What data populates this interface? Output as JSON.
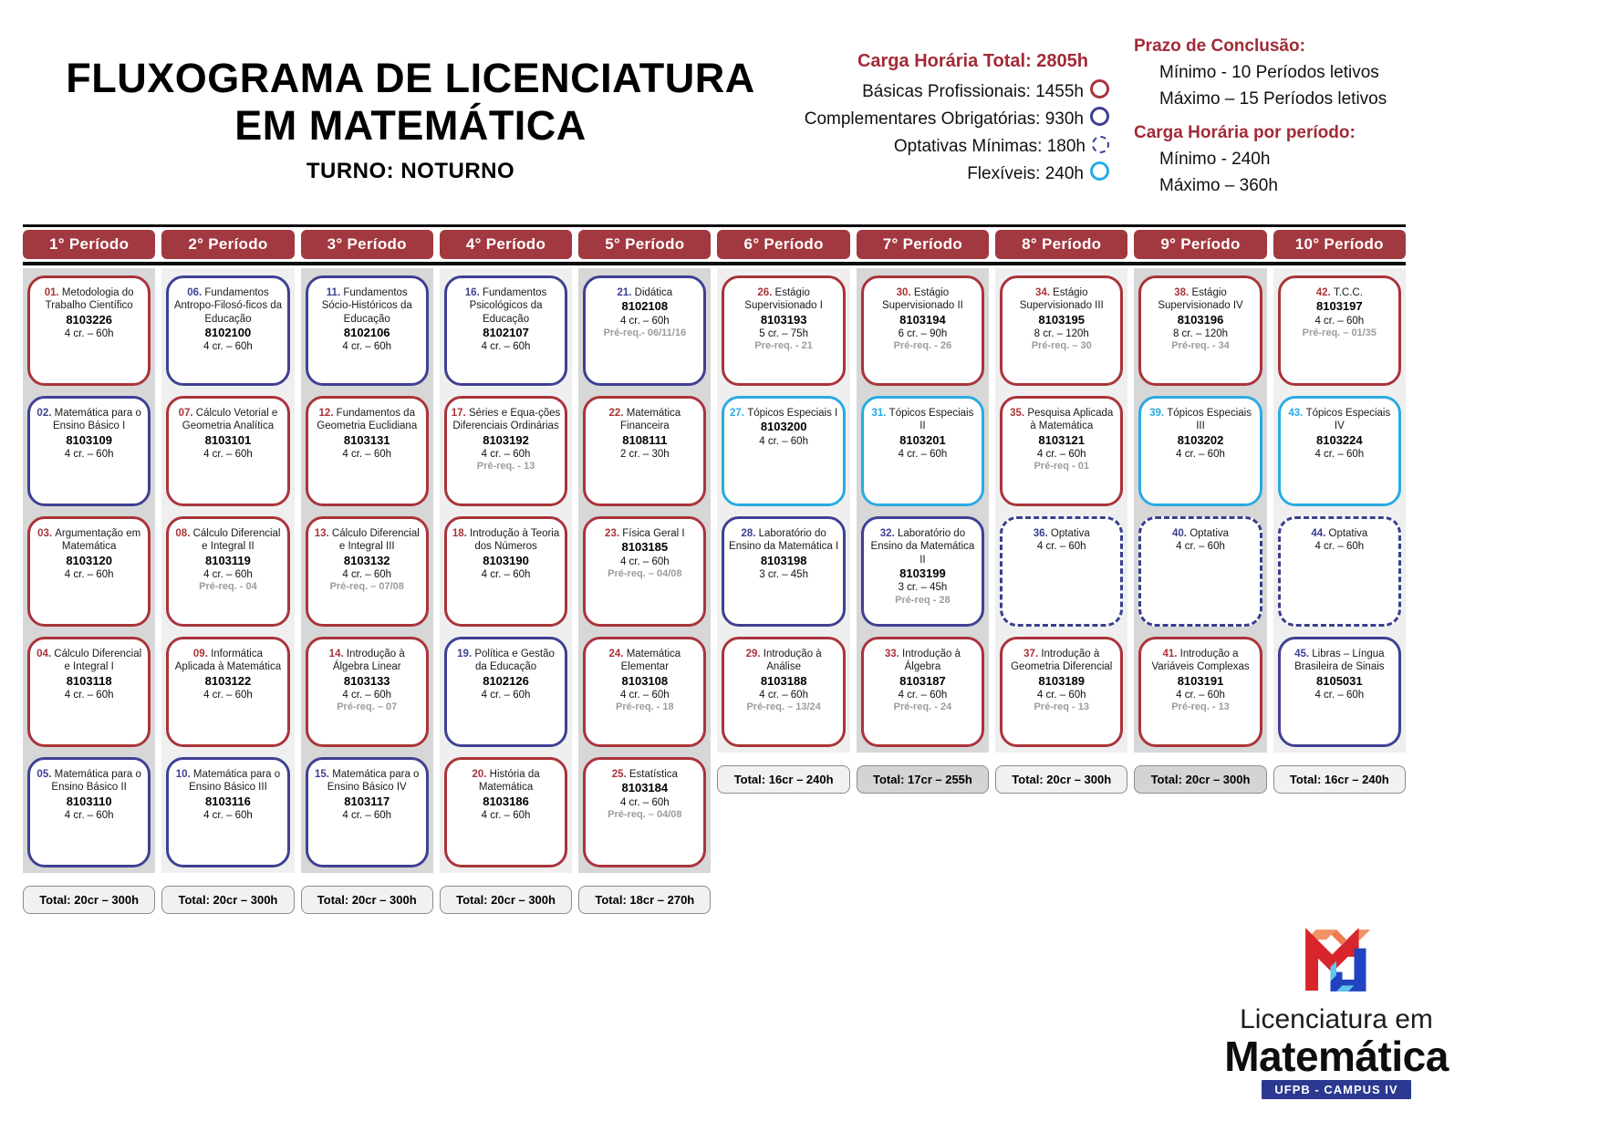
{
  "header": {
    "title_line1": "FLUXOGRAMA DE LICENCIATURA",
    "title_line2": "EM MATEMÁTICA",
    "subtitle": "TURNO: NOTURNO"
  },
  "legend": {
    "total_label": "Carga Horária Total: 2805h",
    "items": [
      {
        "label": "Básicas Profissionais: 1455h",
        "type": "basicas"
      },
      {
        "label": "Complementares Obrigatórias: 930h",
        "type": "complementares"
      },
      {
        "label": "Optativas Mínimas: 180h",
        "type": "optativas"
      },
      {
        "label": "Flexíveis: 240h",
        "type": "flexiveis"
      }
    ]
  },
  "deadlines": {
    "title": "Prazo de Conclusão:",
    "min": "Mínimo - 10 Períodos letivos",
    "max": "Máximo – 15 Períodos letivos"
  },
  "workload": {
    "title": "Carga Horária por período:",
    "min": "Mínimo - 240h",
    "max": "Máximo – 360h"
  },
  "colors": {
    "basicas": "#A93439",
    "complementares": "#3F4093",
    "optativas": "#383F8E",
    "flexiveis": "#29ABE2",
    "header_red": "#A23840",
    "accent_text_red": "#A12B36"
  },
  "periods": [
    {
      "title": "1° Período",
      "total": "Total: 20cr – 300h",
      "courses": [
        {
          "num": "01.",
          "name": "Metodologia do Trabalho Científico",
          "code": "8103226",
          "credits": "4 cr. – 60h",
          "type": "basicas"
        },
        {
          "num": "02.",
          "name": "Matemática para o Ensino Básico I",
          "code": "8103109",
          "credits": "4 cr. – 60h",
          "type": "complementares"
        },
        {
          "num": "03.",
          "name": "Argumentação em Matemática",
          "code": "8103120",
          "credits": "4 cr. – 60h",
          "type": "basicas"
        },
        {
          "num": "04.",
          "name": "Cálculo Diferencial e Integral I",
          "code": "8103118",
          "credits": "4 cr. – 60h",
          "type": "basicas"
        },
        {
          "num": "05.",
          "name": "Matemática para o Ensino Básico II",
          "code": "8103110",
          "credits": "4 cr. – 60h",
          "type": "complementares"
        }
      ]
    },
    {
      "title": "2° Período",
      "total": "Total: 20cr – 300h",
      "courses": [
        {
          "num": "06.",
          "name": "Fundamentos Antropo-Filosó-ficos da Educação",
          "code": "8102100",
          "credits": "4 cr. – 60h",
          "type": "complementares"
        },
        {
          "num": "07.",
          "name": "Cálculo Vetorial e Geometria Analítica",
          "code": "8103101",
          "credits": "4 cr. – 60h",
          "type": "basicas"
        },
        {
          "num": "08.",
          "name": "Cálculo Diferencial e Integral II",
          "code": "8103119",
          "credits": "4 cr. – 60h",
          "prereq": "Pré-req. - 04",
          "type": "basicas"
        },
        {
          "num": "09.",
          "name": "Informática Aplicada à Matemática",
          "code": "8103122",
          "credits": "4 cr. – 60h",
          "type": "basicas"
        },
        {
          "num": "10.",
          "name": "Matemática para o Ensino Básico III",
          "code": "8103116",
          "credits": "4 cr. – 60h",
          "type": "complementares"
        }
      ]
    },
    {
      "title": "3° Período",
      "total": "Total: 20cr – 300h",
      "courses": [
        {
          "num": "11.",
          "name": "Fundamentos Sócio-Históricos da Educação",
          "code": "8102106",
          "credits": "4 cr. – 60h",
          "type": "complementares"
        },
        {
          "num": "12.",
          "name": "Fundamentos da Geometria Euclidiana",
          "code": "8103131",
          "credits": "4 cr. – 60h",
          "type": "basicas"
        },
        {
          "num": "13.",
          "name": "Cálculo Diferencial e Integral III",
          "code": "8103132",
          "credits": "4 cr. – 60h",
          "prereq": "Pré-req. – 07/08",
          "type": "basicas"
        },
        {
          "num": "14.",
          "name": "Introdução à Álgebra Linear",
          "code": "8103133",
          "credits": "4 cr. – 60h",
          "prereq": "Pré-req. – 07",
          "type": "basicas"
        },
        {
          "num": "15.",
          "name": "Matemática para o Ensino Básico IV",
          "code": "8103117",
          "credits": "4 cr. – 60h",
          "type": "complementares"
        }
      ]
    },
    {
      "title": "4° Período",
      "total": "Total: 20cr – 300h",
      "courses": [
        {
          "num": "16.",
          "name": "Fundamentos Psicológicos da Educação",
          "code": "8102107",
          "credits": "4 cr. – 60h",
          "type": "complementares"
        },
        {
          "num": "17.",
          "name": "Séries e Equa-ções Diferenciais Ordinárias",
          "code": "8103192",
          "credits": "4 cr. – 60h",
          "prereq": "Pré-req. - 13",
          "type": "basicas"
        },
        {
          "num": "18.",
          "name": "Introdução à Teoria dos Números",
          "code": "8103190",
          "credits": "4 cr. – 60h",
          "type": "basicas"
        },
        {
          "num": "19.",
          "name": "Política e Gestão da Educação",
          "code": "8102126",
          "credits": "4 cr. – 60h",
          "type": "complementares"
        },
        {
          "num": "20.",
          "name": "História da Matemática",
          "code": "8103186",
          "credits": "4 cr. – 60h",
          "type": "basicas"
        }
      ]
    },
    {
      "title": "5° Período",
      "total": "Total: 18cr – 270h",
      "courses": [
        {
          "num": "21.",
          "name": "Didática",
          "code": "8102108",
          "credits": "4 cr. – 60h",
          "prereq": "Pré-req.- 06/11/16",
          "type": "complementares"
        },
        {
          "num": "22.",
          "name": "Matemática Financeira",
          "code": "8108111",
          "credits": "2 cr. – 30h",
          "type": "basicas"
        },
        {
          "num": "23.",
          "name": "Física Geral I",
          "code": "8103185",
          "credits": "4 cr. – 60h",
          "prereq": "Pré-req. – 04/08",
          "type": "basicas"
        },
        {
          "num": "24.",
          "name": "Matemática Elementar",
          "code": "8103108",
          "credits": "4 cr. – 60h",
          "prereq": "Pré-req. - 18",
          "type": "basicas"
        },
        {
          "num": "25.",
          "name": "Estatística",
          "code": "8103184",
          "credits": "4 cr. – 60h",
          "prereq": "Pré-req. – 04/08",
          "type": "basicas"
        }
      ]
    },
    {
      "title": "6° Período",
      "total": "Total: 16cr – 240h",
      "courses": [
        {
          "num": "26.",
          "name": "Estágio Supervisionado I",
          "code": "8103193",
          "credits": "5 cr. – 75h",
          "prereq": "Pre-req. - 21",
          "type": "basicas"
        },
        {
          "num": "27.",
          "name": "Tópicos Especiais I",
          "code": "8103200",
          "credits": "4 cr. – 60h",
          "type": "flexiveis"
        },
        {
          "num": "28.",
          "name": "Laboratório do Ensino da Matemática I",
          "code": "8103198",
          "credits": "3 cr. – 45h",
          "type": "complementares"
        },
        {
          "num": "29.",
          "name": "Introdução à Análise",
          "code": "8103188",
          "credits": "4 cr. – 60h",
          "prereq": "Pré-req. – 13/24",
          "type": "basicas"
        }
      ]
    },
    {
      "title": "7° Período",
      "total": "Total: 17cr – 255h",
      "total_dark": true,
      "courses": [
        {
          "num": "30.",
          "name": "Estágio Supervisionado II",
          "code": "8103194",
          "credits": "6 cr. – 90h",
          "prereq": "Pré-req. - 26",
          "type": "basicas"
        },
        {
          "num": "31.",
          "name": "Tópicos Especiais II",
          "code": "8103201",
          "credits": "4 cr. – 60h",
          "type": "flexiveis"
        },
        {
          "num": "32.",
          "name": "Laboratório do Ensino da Matemática II",
          "code": "8103199",
          "credits": "3 cr. – 45h",
          "prereq": "Pré-req - 28",
          "type": "complementares"
        },
        {
          "num": "33.",
          "name": "Introdução à Álgebra",
          "code": "8103187",
          "credits": "4 cr. – 60h",
          "prereq": "Pré-req. - 24",
          "type": "basicas"
        }
      ]
    },
    {
      "title": "8° Período",
      "total": "Total: 20cr – 300h",
      "courses": [
        {
          "num": "34.",
          "name": "Estágio Supervisionado III",
          "code": "8103195",
          "credits": "8 cr. – 120h",
          "prereq": "Pré-req. – 30",
          "type": "basicas"
        },
        {
          "num": "35.",
          "name": "Pesquisa Aplicada à Matemática",
          "code": "8103121",
          "credits": "4 cr. – 60h",
          "prereq": "Pré-req - 01",
          "type": "basicas"
        },
        {
          "num": "36.",
          "name": "Optativa",
          "credits": "4 cr. – 60h",
          "type": "optativas"
        },
        {
          "num": "37.",
          "name": "Introdução à Geometria Diferencial",
          "code": "8103189",
          "credits": "4 cr. – 60h",
          "prereq": "Pré-req - 13",
          "type": "basicas"
        }
      ]
    },
    {
      "title": "9° Período",
      "total": "Total: 20cr – 300h",
      "total_dark": true,
      "courses": [
        {
          "num": "38.",
          "name": "Estágio Supervisionado IV",
          "code": "8103196",
          "credits": "8 cr. – 120h",
          "prereq": "Pré-req. - 34",
          "type": "basicas"
        },
        {
          "num": "39.",
          "name": "Tópicos Especiais III",
          "code": "8103202",
          "credits": "4 cr. – 60h",
          "type": "flexiveis"
        },
        {
          "num": "40.",
          "name": "Optativa",
          "credits": "4 cr. – 60h",
          "type": "optativas"
        },
        {
          "num": "41.",
          "name": "Introdução a Variáveis Complexas",
          "code": "8103191",
          "credits": "4 cr. – 60h",
          "prereq": "Pré-req. - 13",
          "type": "basicas"
        }
      ]
    },
    {
      "title": "10° Período",
      "total": "Total: 16cr – 240h",
      "courses": [
        {
          "num": "42.",
          "name": "T.C.C.",
          "code": "8103197",
          "credits": "4 cr. – 60h",
          "prereq": "Pré-req. – 01/35",
          "type": "basicas"
        },
        {
          "num": "43.",
          "name": "Tópicos Especiais IV",
          "code": "8103224",
          "credits": "4 cr. – 60h",
          "type": "flexiveis"
        },
        {
          "num": "44.",
          "name": "Optativa",
          "credits": "4 cr. – 60h",
          "type": "optativas"
        },
        {
          "num": "45.",
          "name": "Libras – Língua Brasileira de Sinais",
          "code": "8105031",
          "credits": "4 cr. – 60h",
          "type": "complementares"
        }
      ]
    }
  ],
  "logo": {
    "line1": "Licenciatura em",
    "line2": "Matemática",
    "campus": "UFPB - CAMPUS IV"
  }
}
